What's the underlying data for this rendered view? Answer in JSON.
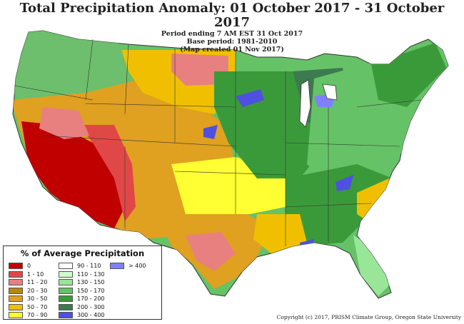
{
  "header": {
    "title": "Total Precipitation Anomaly: 01 October 2017 - 31 October 2017",
    "period": "Period ending 7 AM EST 31 Oct 2017",
    "base": "Base period: 1981-2010",
    "created": "(Map created 01 Nov 2017)"
  },
  "legend": {
    "title": "% of Average Precipitation",
    "items": [
      {
        "label": "0",
        "color": "#c00000"
      },
      {
        "label": "1 - 10",
        "color": "#e04848"
      },
      {
        "label": "11 - 20",
        "color": "#e88080"
      },
      {
        "label": "20 - 30",
        "color": "#b8860b"
      },
      {
        "label": "30 - 50",
        "color": "#e0a020"
      },
      {
        "label": "50 - 70",
        "color": "#f0c000"
      },
      {
        "label": "70 - 90",
        "color": "#ffff33"
      },
      {
        "label": "90 - 110",
        "color": "#ffffff"
      },
      {
        "label": "110 - 130",
        "color": "#ccffcc"
      },
      {
        "label": "130 - 150",
        "color": "#99e699"
      },
      {
        "label": "150 - 170",
        "color": "#66c266"
      },
      {
        "label": "170 - 200",
        "color": "#3a9a3a"
      },
      {
        "label": "200 - 300",
        "color": "#3c7a50"
      },
      {
        "label": "300 - 400",
        "color": "#5050e0"
      },
      {
        "label": "> 400",
        "color": "#8080ff"
      }
    ]
  },
  "copyright": "Copyright (c) 2017, PRISM Climate Group, Oregon State University"
}
